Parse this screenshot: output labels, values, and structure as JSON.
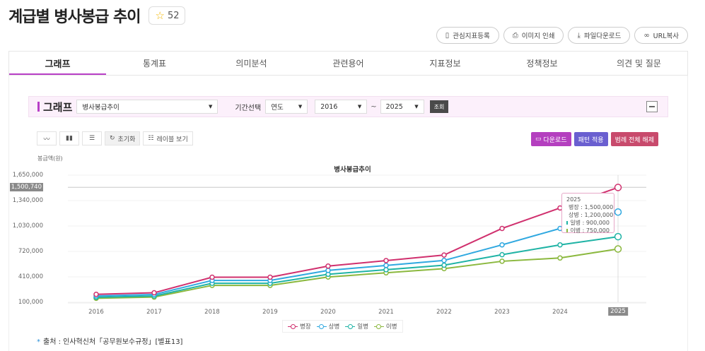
{
  "header": {
    "title": "계급별 병사봉급 추이",
    "favorite_icon": "star-icon",
    "favorite_count": "52"
  },
  "actions": [
    {
      "icon": "bookmark-icon",
      "label": "관심지표등록"
    },
    {
      "icon": "print-icon",
      "label": "이미지 인쇄"
    },
    {
      "icon": "download-icon",
      "label": "파일다운로드"
    },
    {
      "icon": "link-icon",
      "label": "URL복사"
    }
  ],
  "tabs": [
    {
      "label": "그래프",
      "active": true
    },
    {
      "label": "통계표"
    },
    {
      "label": "의미분석"
    },
    {
      "label": "관련용어"
    },
    {
      "label": "지표정보"
    },
    {
      "label": "정책정보"
    },
    {
      "label": "의견 및 질문"
    }
  ],
  "graph_panel": {
    "label": "그래프",
    "indicator_select": "병사봉급추이",
    "period_label": "기간선택",
    "period_unit": "연도",
    "start_year": "2016",
    "tilde": "~",
    "end_year": "2025",
    "query_button": "조회"
  },
  "toolbar": {
    "line_icon": "line-chart-icon",
    "bar_icon": "bar-chart-icon",
    "hbar_icon": "horizontal-bar-icon",
    "reset_label": "초기화",
    "label_view": "레이블 보기",
    "download_label": "다운로드",
    "pattern_label": "패턴 적용",
    "legend_clear_label": "범례 전체 해제"
  },
  "colors": {
    "accent": "#b83fc7",
    "download_btn": "#b43fbf",
    "pattern_btn": "#6a5fd0",
    "legend_clear_btn": "#c84a6c"
  },
  "chart_data": {
    "type": "line",
    "title": "병사봉급추이",
    "xlabel": "",
    "ylabel": "봉급액(원)",
    "categories": [
      "2016",
      "2017",
      "2018",
      "2019",
      "2020",
      "2021",
      "2022",
      "2023",
      "2024",
      "2025"
    ],
    "y_ticks": [
      "100,000",
      "410,000",
      "720,000",
      "1,030,000",
      "1,340,000",
      "1,650,000"
    ],
    "ylim": [
      100000,
      1650000
    ],
    "crosshair_value": "1,500,740",
    "highlight_category": "2025",
    "grid": true,
    "legend_position": "bottom",
    "series": [
      {
        "name": "병장",
        "color": "#d0306e",
        "values": [
          197000,
          216000,
          405700,
          405700,
          540900,
          608500,
          676100,
          1000000,
          1250000,
          1500000
        ]
      },
      {
        "name": "상병",
        "color": "#2fa8e0",
        "values": [
          178000,
          195000,
          366200,
          366200,
          488200,
          549200,
          610200,
          800000,
          1000000,
          1200000
        ]
      },
      {
        "name": "일병",
        "color": "#1fb3a5",
        "values": [
          161000,
          176400,
          331300,
          331300,
          441700,
          496900,
          552100,
          680000,
          800000,
          900000
        ]
      },
      {
        "name": "이병",
        "color": "#8bb83e",
        "values": [
          148800,
          163000,
          306100,
          306100,
          408100,
          459100,
          510100,
          600000,
          640000,
          750000
        ]
      }
    ]
  },
  "tooltip": {
    "year": "2025",
    "rows": [
      {
        "label": "병장 : 1,500,000",
        "color": "#d0306e"
      },
      {
        "label": "상병 : 1,200,000",
        "color": "#2fa8e0"
      },
      {
        "label": "일병 : 900,000",
        "color": "#1fb3a5"
      },
      {
        "label": "이병 : 750,000",
        "color": "#8bb83e"
      }
    ]
  },
  "source": {
    "marker": "*",
    "text": "출처 : 인사혁신처「공무원보수규정」[별표13]"
  }
}
